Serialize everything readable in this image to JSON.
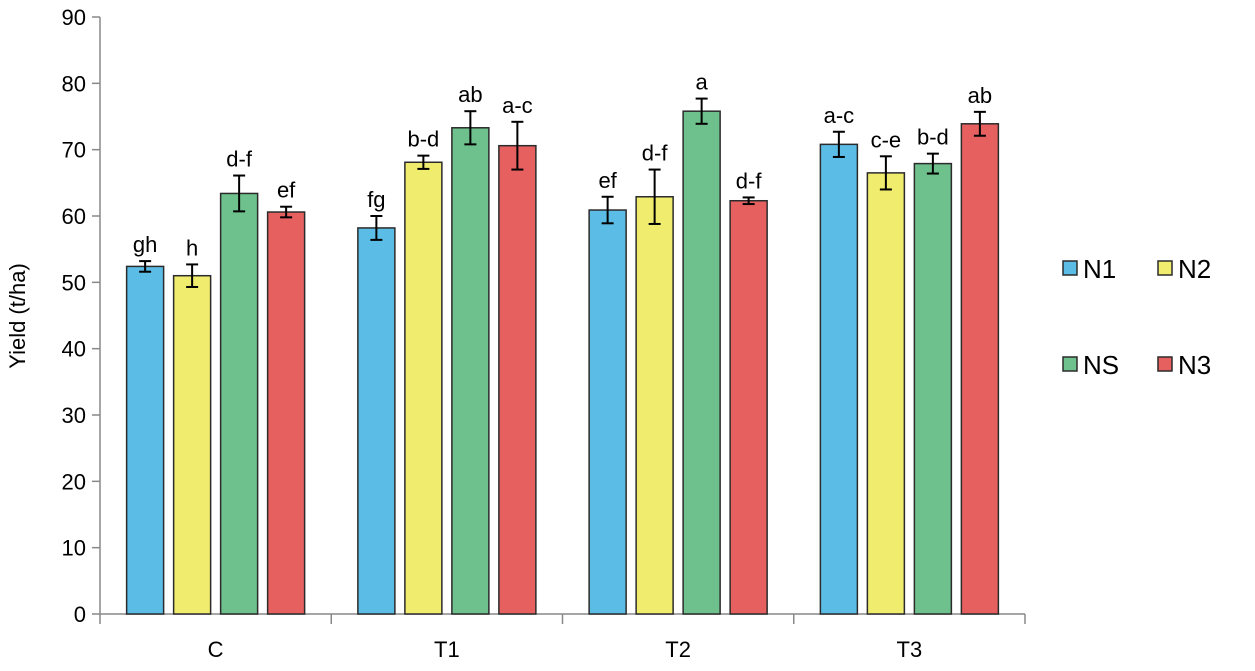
{
  "chart_data": {
    "type": "bar",
    "title": "",
    "xlabel": "",
    "ylabel": "Yield  (t/ha)",
    "ylim": [
      0,
      90
    ],
    "yticks": [
      0,
      10,
      20,
      30,
      40,
      50,
      60,
      70,
      80,
      90
    ],
    "grid": false,
    "legend_position": "right",
    "categories": [
      "C",
      "T1",
      "T2",
      "T3"
    ],
    "series": [
      {
        "name": "N1",
        "color": "#5bbde6",
        "values": [
          52.4,
          58.2,
          60.9,
          70.8
        ],
        "errors": [
          0.8,
          1.8,
          2.0,
          1.9
        ],
        "labels": [
          "gh",
          "fg",
          "ef",
          "a-c"
        ]
      },
      {
        "name": "N2",
        "color": "#f0ec6e",
        "values": [
          51.0,
          68.1,
          62.9,
          66.5
        ],
        "errors": [
          1.7,
          1.0,
          4.1,
          2.5
        ],
        "labels": [
          "h",
          "b-d",
          "d-f",
          "c-e"
        ]
      },
      {
        "name": "NS",
        "color": "#6ec18c",
        "values": [
          63.4,
          73.3,
          75.8,
          67.9
        ],
        "errors": [
          2.7,
          2.5,
          1.9,
          1.5
        ],
        "labels": [
          "d-f",
          "ab",
          "a",
          "b-d"
        ]
      },
      {
        "name": "N3",
        "color": "#e66060",
        "values": [
          60.6,
          70.6,
          62.3,
          73.9
        ],
        "errors": [
          0.8,
          3.6,
          0.5,
          1.8
        ],
        "labels": [
          "ef",
          "a-c",
          "d-f",
          "ab"
        ]
      }
    ],
    "legend_order": [
      "N1",
      "N2",
      "NS",
      "N3"
    ]
  }
}
